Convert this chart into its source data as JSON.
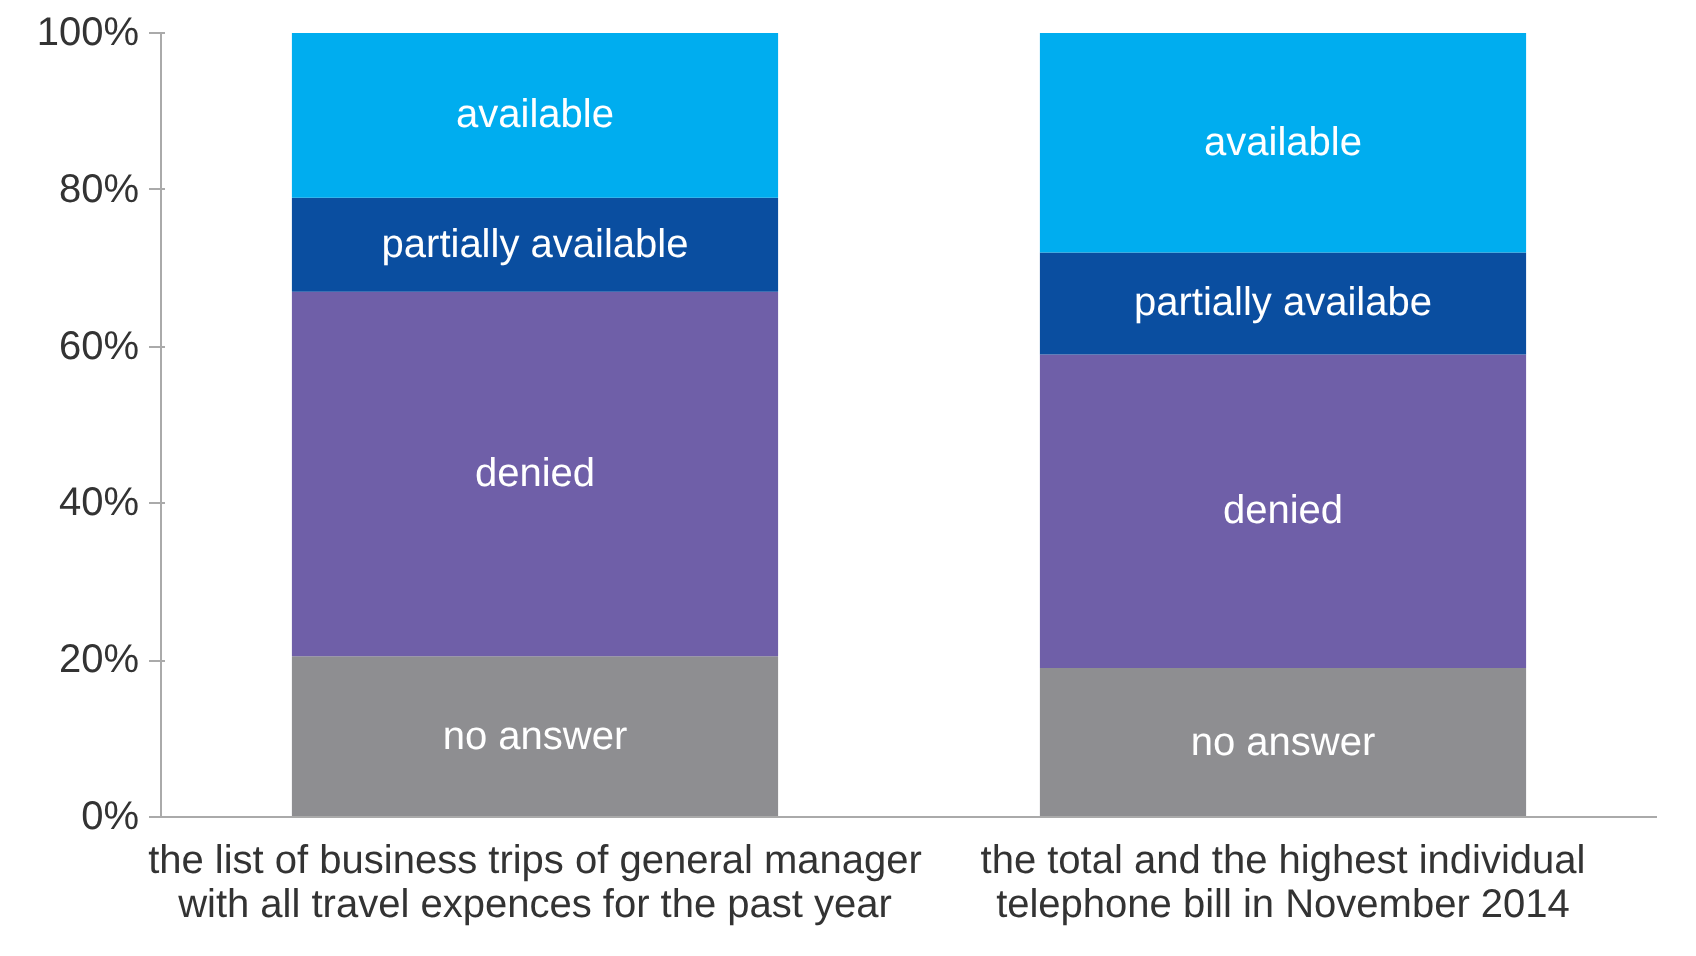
{
  "chart_data": {
    "type": "bar",
    "stacked": true,
    "categories": [
      "the list of business trips of general manager\nwith all travel expences for the past year",
      "the total and the highest individual\ntelephone bill in November 2014"
    ],
    "series": [
      {
        "color": "#8e8e91",
        "values": [
          20.5,
          19
        ],
        "value_labels": [
          "no answer",
          "no answer"
        ]
      },
      {
        "color": "#6f5fa8",
        "values": [
          46.5,
          40
        ],
        "value_labels": [
          "denied",
          "denied"
        ]
      },
      {
        "color": "#0a4ea0",
        "values": [
          12,
          13
        ],
        "value_labels": [
          "partially available",
          "partially availabe"
        ]
      },
      {
        "color": "#00adef",
        "values": [
          21,
          28
        ],
        "value_labels": [
          "available",
          "available"
        ]
      }
    ],
    "ylim": [
      0,
      100
    ],
    "yticks": [
      {
        "value": 0,
        "label": "0%"
      },
      {
        "value": 20,
        "label": "20%"
      },
      {
        "value": 40,
        "label": "40%"
      },
      {
        "value": 60,
        "label": "60%"
      },
      {
        "value": 80,
        "label": "80%"
      },
      {
        "value": 100,
        "label": "100%"
      }
    ],
    "grid": false
  }
}
